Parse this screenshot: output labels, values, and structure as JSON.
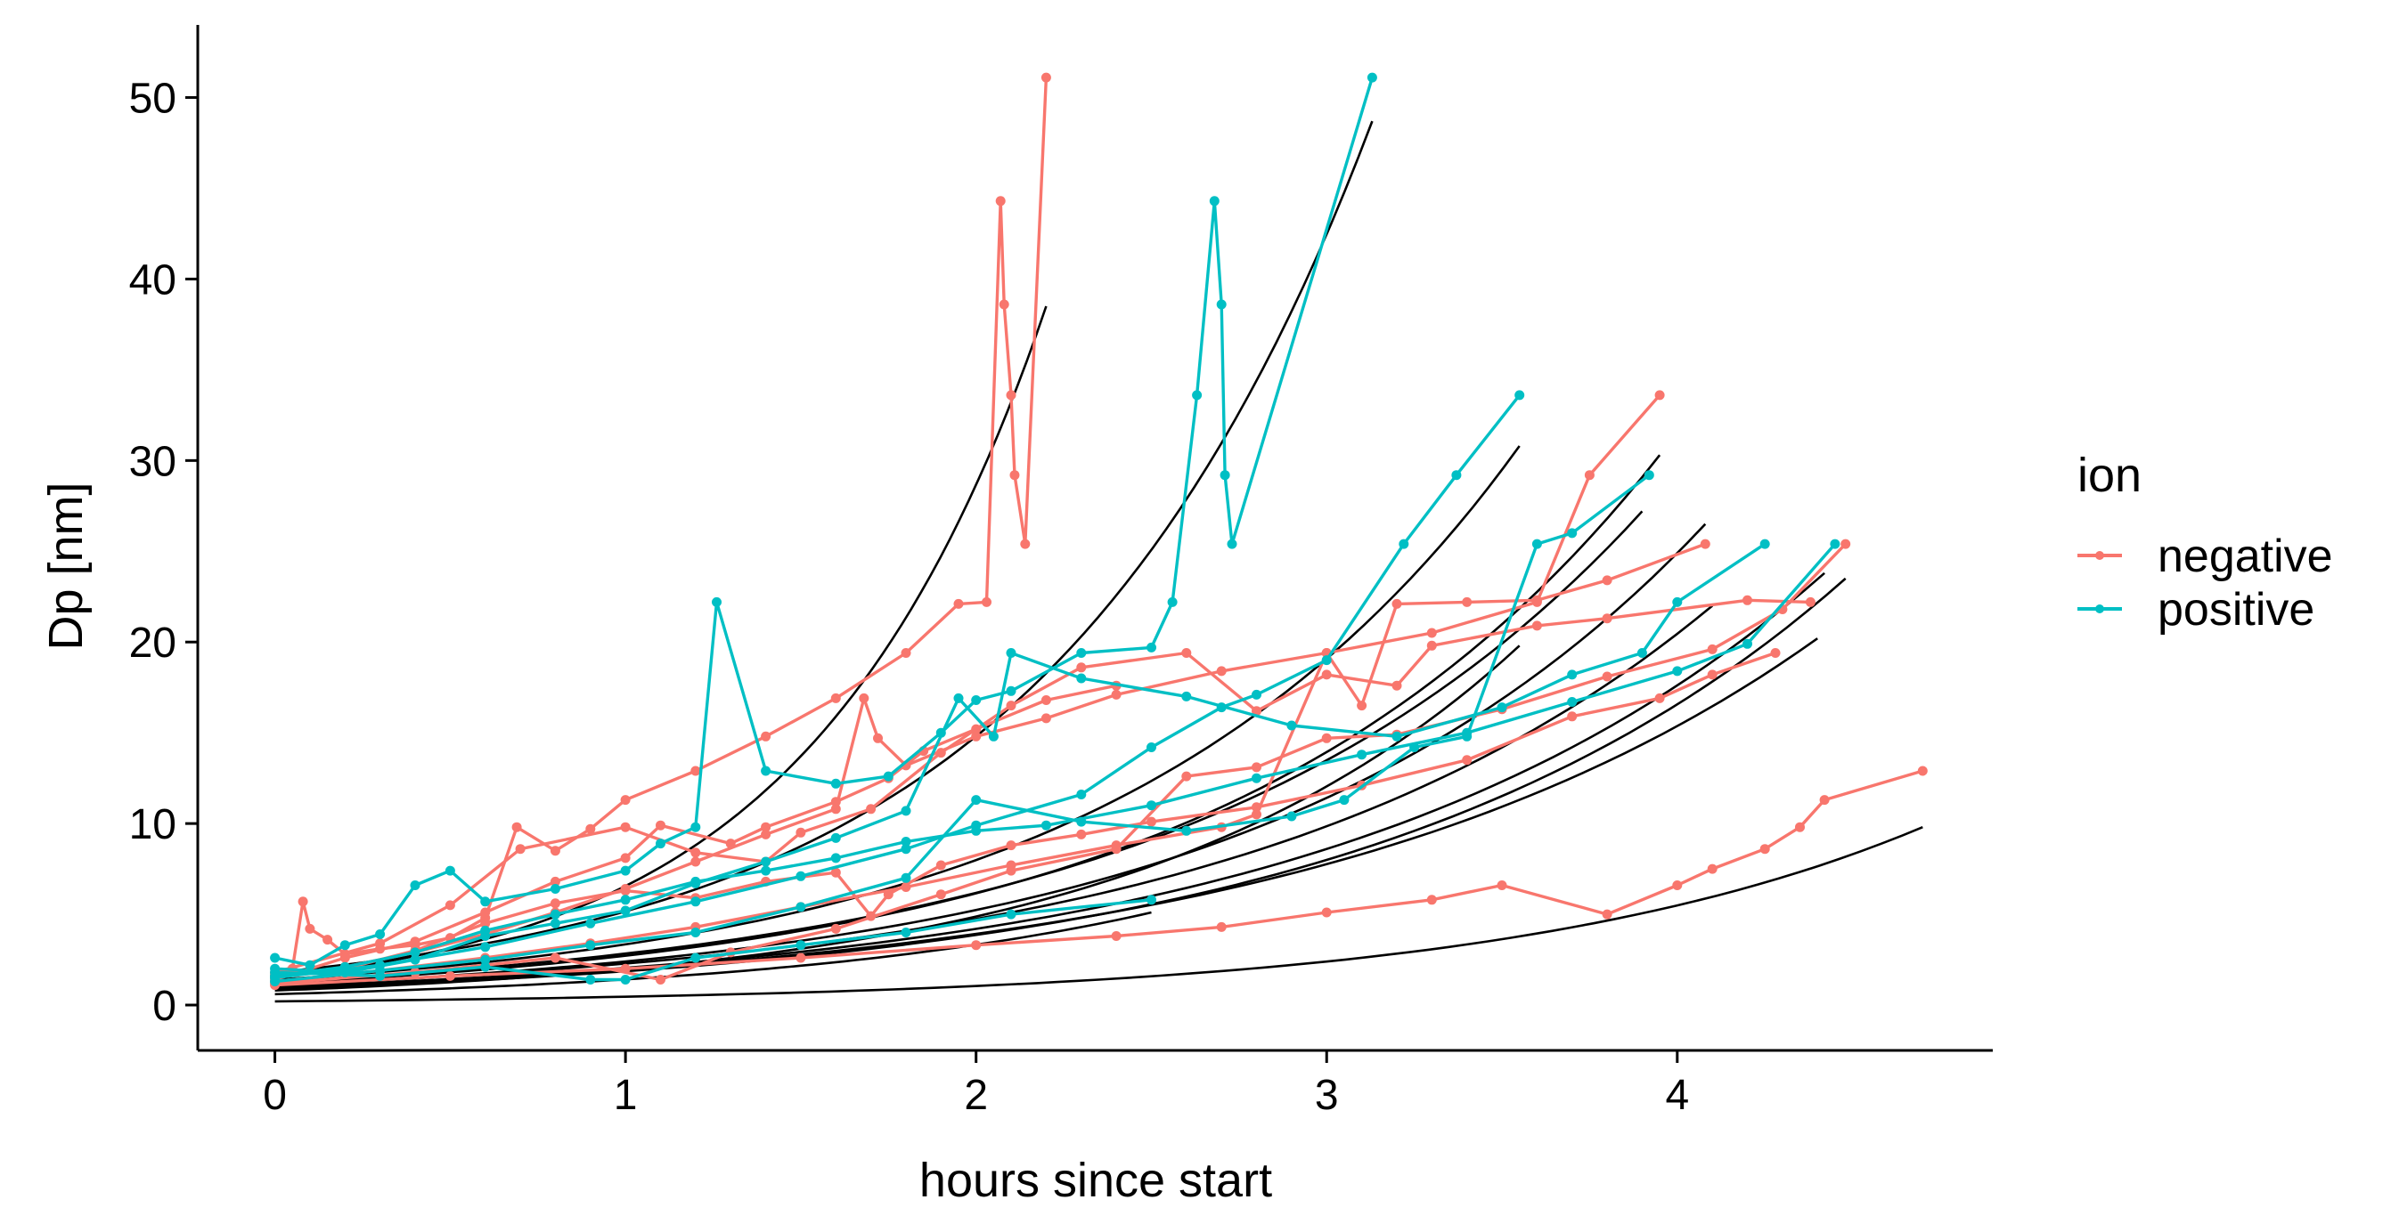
{
  "chart_data": {
    "type": "line",
    "title": "",
    "xlabel": "hours since start",
    "ylabel": "Dp [nm]",
    "xlim": [
      -0.22,
      4.9
    ],
    "ylim": [
      -2.5,
      54
    ],
    "x_ticks": [
      0,
      1,
      2,
      3,
      4
    ],
    "y_ticks": [
      0,
      10,
      20,
      30,
      40,
      50
    ],
    "x_tick_labels": [
      "0",
      "1",
      "2",
      "3",
      "4"
    ],
    "y_tick_labels": [
      "0",
      "10",
      "20",
      "30",
      "40",
      "50"
    ],
    "grid": false,
    "legend": {
      "title": "ion",
      "position": "right",
      "entries": [
        {
          "label": "negative",
          "color": "#F8766D"
        },
        {
          "label": "positive",
          "color": "#00BFC4"
        }
      ]
    },
    "colors": {
      "negative": "#F8766D",
      "positive": "#00BFC4",
      "fit": "#000000"
    },
    "fit_curves": [
      {
        "x0": 0,
        "y0": 1.5,
        "x1": 2.2,
        "y1": 38.5
      },
      {
        "x0": 0,
        "y0": 1.8,
        "x1": 3.13,
        "y1": 48.7
      },
      {
        "x0": 0,
        "y0": 1.4,
        "x1": 3.55,
        "y1": 30.8
      },
      {
        "x0": 0,
        "y0": 1.2,
        "x1": 3.95,
        "y1": 30.3
      },
      {
        "x0": 0,
        "y0": 1.3,
        "x1": 3.9,
        "y1": 27.2
      },
      {
        "x0": 0,
        "y0": 1.1,
        "x1": 4.08,
        "y1": 26.5
      },
      {
        "x0": 0,
        "y0": 1.0,
        "x1": 4.42,
        "y1": 23.8
      },
      {
        "x0": 0,
        "y0": 0.9,
        "x1": 4.48,
        "y1": 23.5
      },
      {
        "x0": 0,
        "y0": 1.0,
        "x1": 4.4,
        "y1": 20.2
      },
      {
        "x0": 0,
        "y0": 0.8,
        "x1": 3.55,
        "y1": 19.8
      },
      {
        "x0": 0,
        "y0": 1.1,
        "x1": 4.1,
        "y1": 22.0
      },
      {
        "x0": 0,
        "y0": 0.6,
        "x1": 2.5,
        "y1": 5.1
      },
      {
        "x0": 0,
        "y0": 0.2,
        "x1": 4.7,
        "y1": 9.8
      }
    ],
    "series": [
      {
        "name": "negative",
        "points": [
          [
            0.0,
            1.6
          ],
          [
            0.05,
            2.0
          ],
          [
            0.08,
            5.7
          ],
          [
            0.1,
            4.2
          ],
          [
            0.15,
            3.6
          ],
          [
            0.2,
            2.8
          ],
          [
            0.3,
            3.1
          ],
          [
            0.4,
            3.3
          ],
          [
            0.5,
            3.7
          ],
          [
            0.6,
            4.8
          ],
          [
            0.69,
            9.8
          ],
          [
            0.8,
            8.5
          ],
          [
            0.9,
            9.7
          ],
          [
            1.0,
            11.3
          ],
          [
            1.2,
            12.9
          ],
          [
            1.4,
            14.8
          ],
          [
            1.6,
            16.9
          ],
          [
            1.8,
            19.4
          ],
          [
            1.95,
            22.1
          ],
          [
            2.03,
            22.2
          ],
          [
            2.07,
            44.3
          ],
          [
            2.08,
            38.6
          ],
          [
            2.1,
            33.6
          ],
          [
            2.11,
            29.2
          ],
          [
            2.14,
            25.4
          ],
          [
            2.2,
            51.1
          ]
        ]
      },
      {
        "name": "negative",
        "points": [
          [
            0.0,
            1.5
          ],
          [
            0.2,
            2.1
          ],
          [
            0.4,
            2.9
          ],
          [
            0.6,
            3.9
          ],
          [
            0.8,
            5.1
          ],
          [
            1.0,
            6.4
          ],
          [
            1.2,
            7.9
          ],
          [
            1.4,
            9.4
          ],
          [
            1.6,
            10.8
          ],
          [
            1.68,
            16.9
          ],
          [
            1.72,
            14.7
          ],
          [
            1.8,
            13.2
          ],
          [
            2.0,
            14.8
          ],
          [
            2.2,
            15.8
          ],
          [
            2.4,
            17.1
          ],
          [
            2.7,
            18.4
          ],
          [
            3.0,
            19.4
          ],
          [
            3.3,
            20.5
          ],
          [
            3.6,
            22.2
          ],
          [
            3.75,
            29.2
          ],
          [
            3.95,
            33.6
          ]
        ]
      },
      {
        "name": "negative",
        "points": [
          [
            0.0,
            1.3
          ],
          [
            0.3,
            1.9
          ],
          [
            0.6,
            2.6
          ],
          [
            0.9,
            3.4
          ],
          [
            1.2,
            4.3
          ],
          [
            1.5,
            5.4
          ],
          [
            1.8,
            6.5
          ],
          [
            2.1,
            7.7
          ],
          [
            2.4,
            8.8
          ],
          [
            2.7,
            9.8
          ],
          [
            2.8,
            10.5
          ],
          [
            3.0,
            19.4
          ],
          [
            3.1,
            16.5
          ],
          [
            3.2,
            22.1
          ],
          [
            3.4,
            22.2
          ],
          [
            3.6,
            22.3
          ],
          [
            3.8,
            23.4
          ],
          [
            4.08,
            25.4
          ]
        ]
      },
      {
        "name": "negative",
        "points": [
          [
            0.0,
            1.2
          ],
          [
            0.4,
            1.8
          ],
          [
            0.8,
            2.6
          ],
          [
            1.1,
            1.4
          ],
          [
            1.3,
            2.9
          ],
          [
            1.6,
            4.2
          ],
          [
            1.9,
            6.1
          ],
          [
            2.1,
            7.4
          ],
          [
            2.4,
            8.6
          ],
          [
            2.6,
            12.6
          ],
          [
            2.8,
            13.1
          ],
          [
            3.0,
            14.7
          ],
          [
            3.2,
            14.9
          ],
          [
            3.5,
            16.3
          ],
          [
            3.8,
            18.1
          ],
          [
            4.1,
            19.6
          ],
          [
            4.3,
            21.8
          ],
          [
            4.48,
            25.4
          ]
        ]
      },
      {
        "name": "negative",
        "points": [
          [
            0.0,
            1.1
          ],
          [
            0.5,
            1.6
          ],
          [
            1.0,
            2.0
          ],
          [
            1.5,
            2.6
          ],
          [
            2.0,
            3.3
          ],
          [
            2.4,
            3.8
          ],
          [
            2.7,
            4.3
          ],
          [
            3.0,
            5.1
          ],
          [
            3.3,
            5.8
          ],
          [
            3.5,
            6.6
          ],
          [
            3.8,
            5.0
          ],
          [
            4.0,
            6.6
          ],
          [
            4.1,
            7.5
          ],
          [
            4.25,
            8.6
          ],
          [
            4.35,
            9.8
          ],
          [
            4.42,
            11.3
          ],
          [
            4.7,
            12.9
          ]
        ]
      },
      {
        "name": "negative",
        "points": [
          [
            0.0,
            1.8
          ],
          [
            0.3,
            3.4
          ],
          [
            0.5,
            5.5
          ],
          [
            0.7,
            8.6
          ],
          [
            1.0,
            9.8
          ],
          [
            1.2,
            8.4
          ],
          [
            1.4,
            7.9
          ],
          [
            1.5,
            9.5
          ],
          [
            1.7,
            10.8
          ],
          [
            1.9,
            13.9
          ],
          [
            2.1,
            16.5
          ],
          [
            2.3,
            18.6
          ],
          [
            2.6,
            19.4
          ],
          [
            2.8,
            16.2
          ],
          [
            3.0,
            18.2
          ],
          [
            3.2,
            17.6
          ],
          [
            3.3,
            19.8
          ],
          [
            3.6,
            20.9
          ],
          [
            3.8,
            21.3
          ],
          [
            4.2,
            22.3
          ],
          [
            4.38,
            22.2
          ]
        ]
      },
      {
        "name": "negative",
        "points": [
          [
            0.0,
            1.4
          ],
          [
            0.2,
            2.6
          ],
          [
            0.4,
            3.5
          ],
          [
            0.6,
            5.1
          ],
          [
            0.8,
            6.8
          ],
          [
            1.0,
            8.1
          ],
          [
            1.1,
            9.9
          ],
          [
            1.3,
            8.9
          ],
          [
            1.4,
            9.8
          ],
          [
            1.6,
            11.2
          ],
          [
            1.75,
            12.5
          ],
          [
            1.85,
            14.0
          ],
          [
            2.0,
            15.2
          ],
          [
            2.2,
            16.8
          ],
          [
            2.4,
            17.6
          ]
        ]
      },
      {
        "name": "negative",
        "points": [
          [
            0.0,
            1.7
          ],
          [
            0.2,
            2.0
          ],
          [
            0.4,
            3.0
          ],
          [
            0.6,
            4.5
          ],
          [
            0.8,
            5.6
          ],
          [
            1.0,
            6.3
          ],
          [
            1.2,
            5.9
          ],
          [
            1.4,
            6.8
          ],
          [
            1.6,
            7.3
          ],
          [
            1.7,
            4.9
          ],
          [
            1.75,
            6.1
          ],
          [
            1.9,
            7.7
          ],
          [
            2.1,
            8.8
          ],
          [
            2.3,
            9.4
          ],
          [
            2.5,
            10.1
          ],
          [
            2.8,
            10.9
          ],
          [
            3.1,
            12.1
          ],
          [
            3.4,
            13.5
          ],
          [
            3.7,
            15.9
          ],
          [
            3.95,
            16.9
          ],
          [
            4.1,
            18.2
          ],
          [
            4.28,
            19.4
          ]
        ]
      }
    ],
    "series_positive": [
      {
        "name": "positive",
        "points": [
          [
            0.0,
            2.6
          ],
          [
            0.1,
            2.2
          ],
          [
            0.2,
            3.3
          ],
          [
            0.3,
            3.9
          ],
          [
            0.4,
            6.6
          ],
          [
            0.5,
            7.4
          ],
          [
            0.6,
            5.7
          ],
          [
            0.8,
            6.4
          ],
          [
            1.0,
            7.4
          ],
          [
            1.1,
            8.9
          ],
          [
            1.2,
            9.8
          ],
          [
            1.26,
            22.2
          ],
          [
            1.4,
            12.9
          ],
          [
            1.6,
            12.2
          ],
          [
            1.75,
            12.6
          ],
          [
            1.9,
            15.0
          ],
          [
            2.0,
            16.8
          ],
          [
            2.1,
            17.3
          ],
          [
            2.3,
            19.4
          ],
          [
            2.5,
            19.7
          ],
          [
            2.56,
            22.2
          ],
          [
            2.63,
            33.6
          ],
          [
            2.68,
            44.3
          ],
          [
            2.7,
            38.6
          ],
          [
            2.71,
            29.2
          ],
          [
            2.73,
            25.4
          ],
          [
            3.13,
            51.1
          ]
        ]
      },
      {
        "name": "positive",
        "points": [
          [
            0.0,
            1.5
          ],
          [
            0.3,
            2.2
          ],
          [
            0.6,
            3.2
          ],
          [
            0.9,
            4.5
          ],
          [
            1.2,
            5.7
          ],
          [
            1.5,
            7.1
          ],
          [
            1.8,
            8.6
          ],
          [
            2.0,
            9.9
          ],
          [
            2.3,
            11.6
          ],
          [
            2.5,
            14.2
          ],
          [
            2.7,
            16.4
          ],
          [
            2.8,
            17.1
          ],
          [
            3.0,
            19.0
          ],
          [
            3.22,
            25.4
          ],
          [
            3.37,
            29.2
          ],
          [
            3.55,
            33.6
          ]
        ]
      },
      {
        "name": "positive",
        "points": [
          [
            0.0,
            1.8
          ],
          [
            0.3,
            1.6
          ],
          [
            0.6,
            2.1
          ],
          [
            0.9,
            1.4
          ],
          [
            1.0,
            1.4
          ],
          [
            1.2,
            2.6
          ],
          [
            1.5,
            3.3
          ],
          [
            1.8,
            4.0
          ],
          [
            2.1,
            5.0
          ],
          [
            2.5,
            5.8
          ]
        ]
      },
      {
        "name": "positive",
        "points": [
          [
            0.0,
            2.0
          ],
          [
            0.2,
            1.8
          ],
          [
            0.4,
            2.5
          ],
          [
            0.6,
            3.8
          ],
          [
            0.8,
            4.5
          ],
          [
            1.0,
            5.2
          ],
          [
            1.2,
            6.7
          ],
          [
            1.4,
            7.9
          ],
          [
            1.6,
            9.2
          ],
          [
            1.8,
            10.7
          ],
          [
            1.95,
            16.9
          ],
          [
            2.05,
            14.8
          ],
          [
            2.1,
            19.4
          ],
          [
            2.3,
            18.0
          ],
          [
            2.6,
            17.0
          ],
          [
            2.9,
            15.4
          ],
          [
            3.2,
            14.8
          ],
          [
            3.5,
            16.4
          ],
          [
            3.7,
            18.2
          ],
          [
            3.9,
            19.4
          ],
          [
            4.0,
            22.2
          ],
          [
            4.25,
            25.4
          ]
        ]
      },
      {
        "name": "positive",
        "points": [
          [
            0.0,
            1.3
          ],
          [
            0.3,
            1.9
          ],
          [
            0.6,
            2.5
          ],
          [
            0.9,
            3.3
          ],
          [
            1.2,
            4.0
          ],
          [
            1.5,
            5.4
          ],
          [
            1.8,
            7.0
          ],
          [
            2.0,
            11.3
          ],
          [
            2.3,
            10.1
          ],
          [
            2.6,
            9.6
          ],
          [
            2.9,
            10.4
          ],
          [
            3.05,
            11.3
          ],
          [
            3.25,
            14.2
          ],
          [
            3.4,
            14.8
          ],
          [
            3.6,
            25.4
          ],
          [
            3.7,
            26.0
          ],
          [
            3.92,
            29.2
          ]
        ]
      },
      {
        "name": "positive",
        "points": [
          [
            0.0,
            1.6
          ],
          [
            0.2,
            2.1
          ],
          [
            0.4,
            2.9
          ],
          [
            0.6,
            4.1
          ],
          [
            0.8,
            5.0
          ],
          [
            1.0,
            5.8
          ],
          [
            1.2,
            6.8
          ],
          [
            1.4,
            7.4
          ],
          [
            1.6,
            8.1
          ],
          [
            1.8,
            9.0
          ],
          [
            2.0,
            9.6
          ],
          [
            2.2,
            9.9
          ],
          [
            2.5,
            11.0
          ],
          [
            2.8,
            12.5
          ],
          [
            3.1,
            13.8
          ],
          [
            3.4,
            15.0
          ],
          [
            3.7,
            16.7
          ],
          [
            4.0,
            18.4
          ],
          [
            4.2,
            19.9
          ],
          [
            4.45,
            25.4
          ]
        ]
      }
    ]
  }
}
